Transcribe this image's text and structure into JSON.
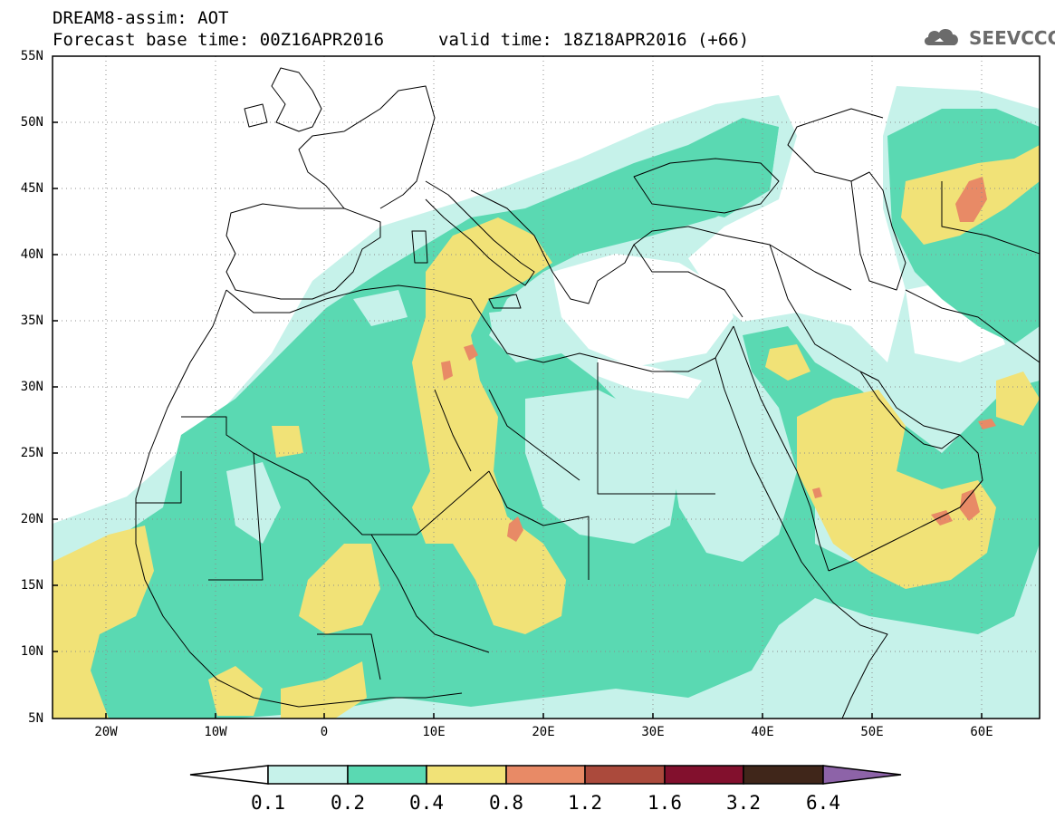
{
  "header": {
    "title": "DREAM8-assim: AOT",
    "base_time": "Forecast base time: 00Z16APR2016",
    "valid_time": "valid time: 18Z18APR2016 (+66)",
    "logo_text": "SEEVCCC"
  },
  "axes": {
    "lat_labels": [
      "55N",
      "50N",
      "45N",
      "40N",
      "35N",
      "30N",
      "25N",
      "20N",
      "15N",
      "10N",
      "5N"
    ],
    "lon_labels": [
      "20W",
      "10W",
      "0",
      "10E",
      "20E",
      "30E",
      "40E",
      "50E",
      "60E"
    ],
    "lon_range": [
      -25,
      65
    ],
    "lat_range": [
      5,
      55
    ]
  },
  "colorbar": {
    "levels": [
      "0.1",
      "0.2",
      "0.4",
      "0.8",
      "1.2",
      "1.6",
      "3.2",
      "6.4"
    ],
    "colors": [
      "#c6f2ea",
      "#5ad9b2",
      "#f1e277",
      "#e88a66",
      "#ab4a3c",
      "#82102d",
      "#40261a",
      "#8d63a8"
    ],
    "min_arrow_color": "#ffffff"
  },
  "colors": {
    "frame": "#000000",
    "gridline": "#8c8c8c",
    "coastline": "#000000"
  }
}
